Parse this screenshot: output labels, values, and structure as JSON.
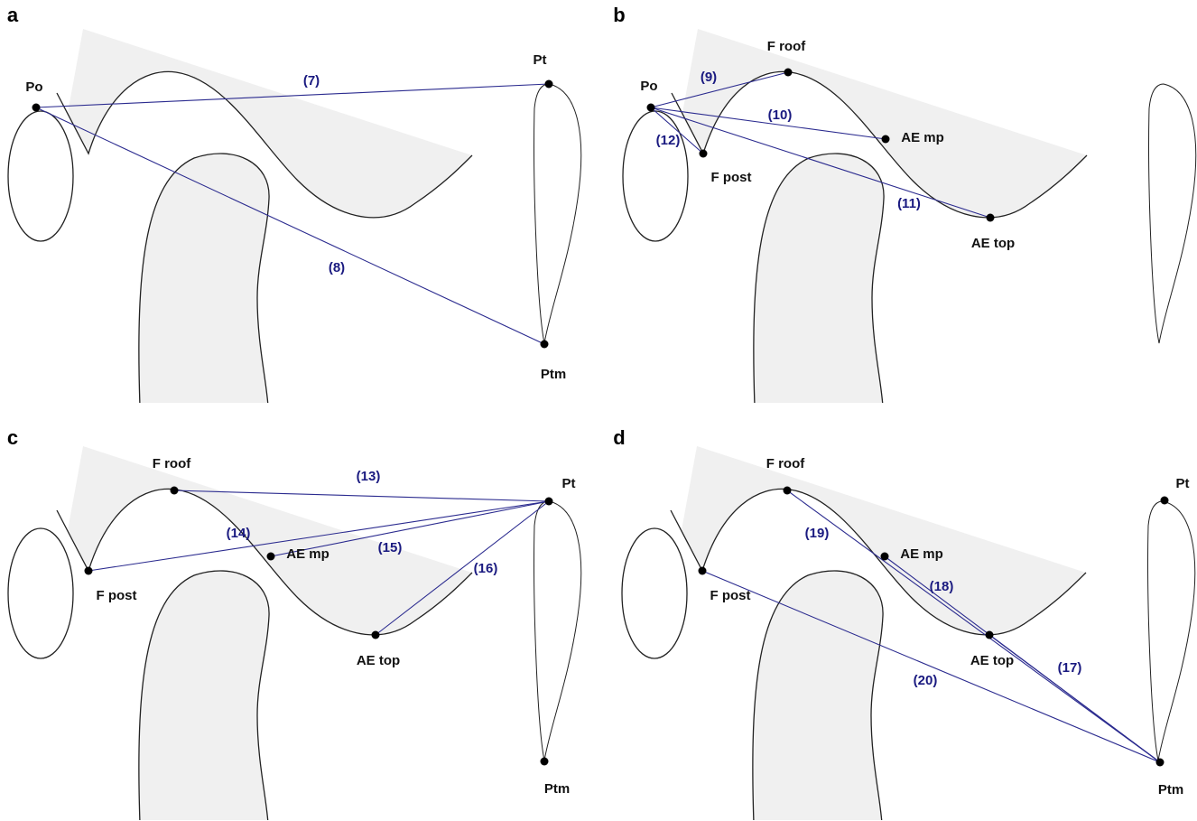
{
  "panels": [
    {
      "letter": "a",
      "points": [
        {
          "label": "Po"
        },
        {
          "label": "Pt"
        },
        {
          "label": "Ptm"
        }
      ],
      "lines": [
        {
          "label": "(7)"
        },
        {
          "label": "(8)"
        }
      ]
    },
    {
      "letter": "b",
      "points": [
        {
          "label": "Po"
        },
        {
          "label": "F roof"
        },
        {
          "label": "AE mp"
        },
        {
          "label": "F post"
        },
        {
          "label": "AE top"
        }
      ],
      "lines": [
        {
          "label": "(9)"
        },
        {
          "label": "(10)"
        },
        {
          "label": "(11)"
        },
        {
          "label": "(12)"
        }
      ]
    },
    {
      "letter": "c",
      "points": [
        {
          "label": "F roof"
        },
        {
          "label": "F post"
        },
        {
          "label": "AE mp"
        },
        {
          "label": "AE top"
        },
        {
          "label": "Pt"
        },
        {
          "label": "Ptm"
        }
      ],
      "lines": [
        {
          "label": "(13)"
        },
        {
          "label": "(14)"
        },
        {
          "label": "(15)"
        },
        {
          "label": "(16)"
        }
      ]
    },
    {
      "letter": "d",
      "points": [
        {
          "label": "F roof"
        },
        {
          "label": "AE mp"
        },
        {
          "label": "F post"
        },
        {
          "label": "AE top"
        },
        {
          "label": "Pt"
        },
        {
          "label": "Ptm"
        }
      ],
      "lines": [
        {
          "label": "(17)"
        },
        {
          "label": "(18)"
        },
        {
          "label": "(19)"
        },
        {
          "label": "(20)"
        }
      ]
    }
  ]
}
